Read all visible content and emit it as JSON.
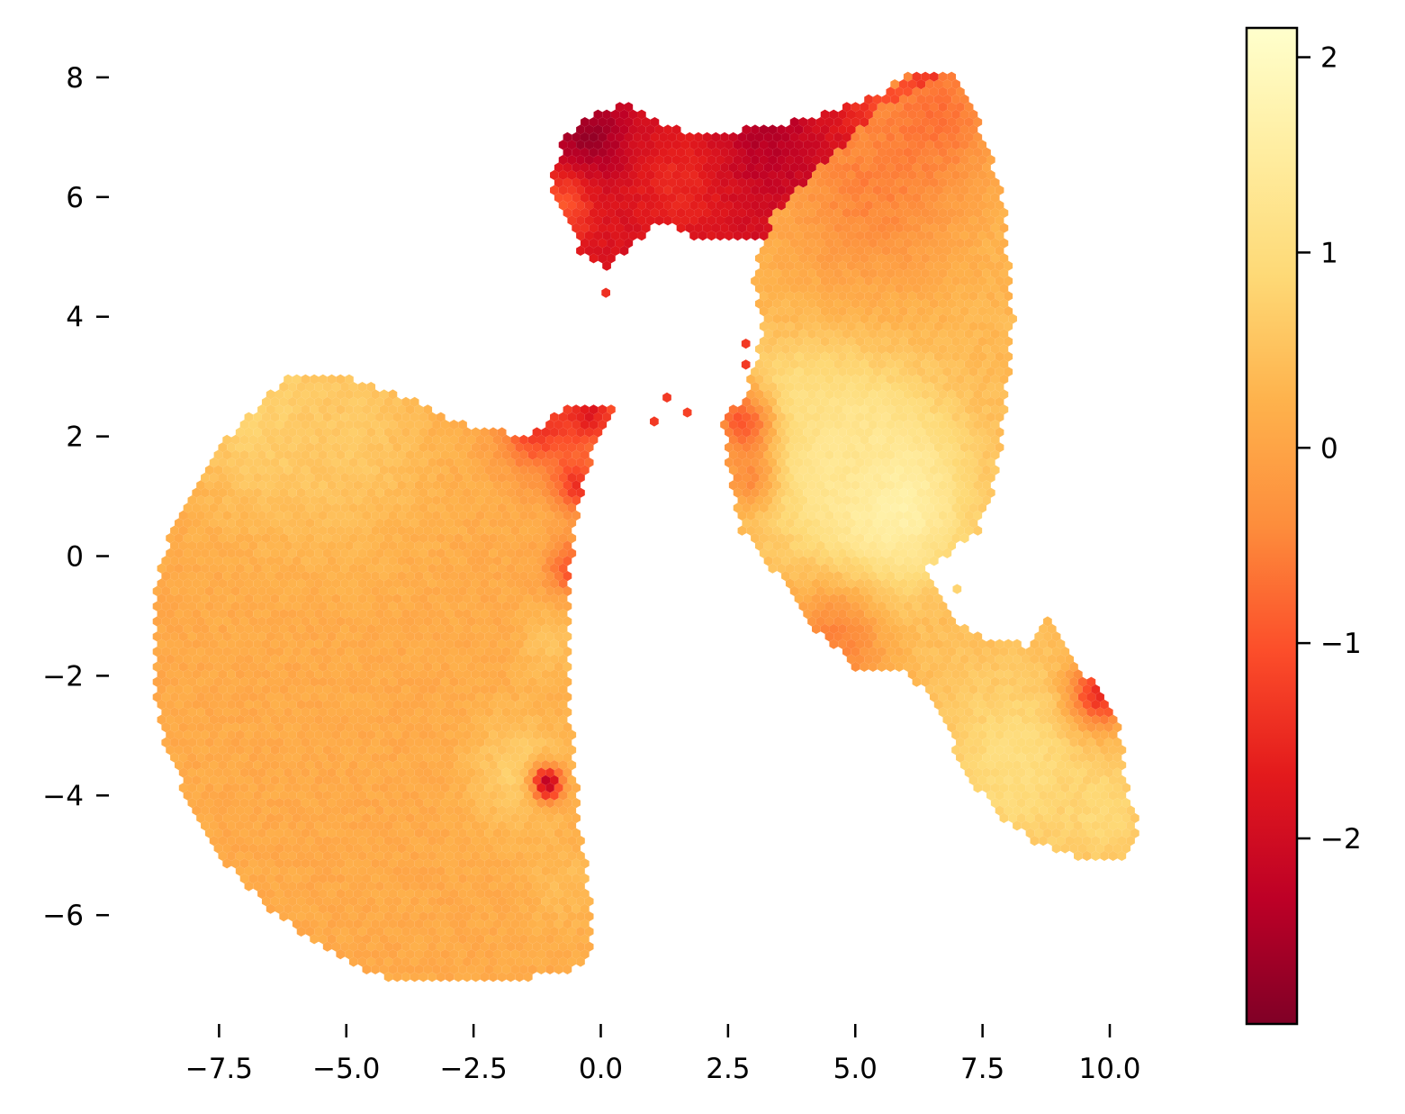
{
  "chart_data": {
    "type": "heatmap",
    "subtype": "hexbin",
    "title": "",
    "xlabel": "",
    "ylabel": "",
    "xlim": [
      -9.0,
      11.0
    ],
    "ylim": [
      -7.8,
      9.0
    ],
    "x_ticks": [
      -7.5,
      -5.0,
      -2.5,
      0.0,
      2.5,
      5.0,
      7.5,
      10.0
    ],
    "x_tick_labels": [
      "−7.5",
      "−5.0",
      "−2.5",
      "0.0",
      "2.5",
      "5.0",
      "7.5",
      "10.0"
    ],
    "y_ticks": [
      8,
      6,
      4,
      2,
      0,
      -2,
      -4,
      -6
    ],
    "y_tick_labels": [
      "8",
      "6",
      "4",
      "2",
      "0",
      "−2",
      "−4",
      "−6"
    ],
    "colorbar": {
      "colormap": "YlOrRd_r",
      "range": [
        -2.95,
        2.15
      ],
      "ticks": [
        2,
        1,
        0,
        -1,
        -2
      ],
      "tick_labels": [
        "2",
        "1",
        "0",
        "−1",
        "−2"
      ]
    },
    "frame": "none",
    "grid": false,
    "regions": [
      {
        "name": "left",
        "outline": [
          [
            -5.7,
            3.05
          ],
          [
            -5.0,
            3.0
          ],
          [
            -4.3,
            2.8
          ],
          [
            -3.5,
            2.55
          ],
          [
            -2.5,
            2.1
          ],
          [
            -1.4,
            2.05
          ],
          [
            -0.6,
            2.5
          ],
          [
            0.3,
            2.55
          ],
          [
            -0.2,
            1.6
          ],
          [
            -0.5,
            0.6
          ],
          [
            -0.65,
            -0.8
          ],
          [
            -0.65,
            -1.6
          ],
          [
            -0.55,
            -3.2
          ],
          [
            -0.4,
            -4.6
          ],
          [
            -0.25,
            -5.4
          ],
          [
            -0.15,
            -6.2
          ],
          [
            -0.15,
            -6.6
          ],
          [
            -0.5,
            -6.9
          ],
          [
            -1.5,
            -7.05
          ],
          [
            -3.0,
            -7.15
          ],
          [
            -3.8,
            -7.15
          ],
          [
            -4.5,
            -6.95
          ],
          [
            -5.6,
            -6.5
          ],
          [
            -6.5,
            -5.9
          ],
          [
            -7.3,
            -5.2
          ],
          [
            -8.0,
            -4.3
          ],
          [
            -8.6,
            -3.1
          ],
          [
            -8.8,
            -2.0
          ],
          [
            -8.8,
            -0.7
          ],
          [
            -8.5,
            0.3
          ],
          [
            -8.1,
            1.0
          ],
          [
            -7.3,
            2.0
          ],
          [
            -6.6,
            2.65
          ],
          [
            -6.2,
            2.95
          ]
        ],
        "base": 0.1,
        "hotspots": [
          {
            "x": -6.5,
            "y": 2.5,
            "r": 1.6,
            "v": 0.9
          },
          {
            "x": -5.0,
            "y": 2.2,
            "r": 2.0,
            "v": 0.6
          },
          {
            "x": -2.5,
            "y": 1.9,
            "r": 1.0,
            "v": 0.2
          },
          {
            "x": -1.2,
            "y": 2.2,
            "r": 0.8,
            "v": -1.3
          },
          {
            "x": -0.2,
            "y": 2.4,
            "r": 0.6,
            "v": -1.7
          },
          {
            "x": -0.45,
            "y": 1.2,
            "r": 0.45,
            "v": -1.4
          },
          {
            "x": -0.6,
            "y": -0.2,
            "r": 0.45,
            "v": -1.0
          },
          {
            "x": -1.6,
            "y": -3.6,
            "r": 1.0,
            "v": 0.7
          },
          {
            "x": -1.0,
            "y": -1.5,
            "r": 0.6,
            "v": 0.5
          },
          {
            "x": -1.05,
            "y": -3.8,
            "r": 0.3,
            "v": -2.3
          },
          {
            "x": -0.7,
            "y": -5.5,
            "r": 0.8,
            "v": 0.4
          }
        ]
      },
      {
        "name": "top",
        "outline": [
          [
            -1.0,
            6.3
          ],
          [
            -0.7,
            7.0
          ],
          [
            -0.1,
            7.4
          ],
          [
            0.5,
            7.55
          ],
          [
            1.3,
            7.2
          ],
          [
            2.0,
            7.0
          ],
          [
            3.0,
            7.15
          ],
          [
            4.0,
            7.3
          ],
          [
            5.5,
            7.7
          ],
          [
            6.3,
            8.1
          ],
          [
            6.8,
            8.1
          ],
          [
            5.5,
            7.5
          ],
          [
            4.2,
            6.4
          ],
          [
            3.4,
            5.7
          ],
          [
            3.2,
            5.25
          ],
          [
            2.0,
            5.25
          ],
          [
            1.2,
            5.6
          ],
          [
            0.6,
            5.2
          ],
          [
            0.1,
            4.75
          ],
          [
            -0.4,
            5.1
          ],
          [
            -0.9,
            5.9
          ]
        ],
        "base": -1.9,
        "hotspots": [
          {
            "x": -0.3,
            "y": 7.0,
            "r": 0.9,
            "v": -2.7
          },
          {
            "x": 3.2,
            "y": 7.0,
            "r": 1.0,
            "v": -2.4
          },
          {
            "x": 1.5,
            "y": 6.2,
            "r": 0.9,
            "v": -1.5
          },
          {
            "x": -0.8,
            "y": 5.8,
            "r": 0.7,
            "v": -1.0
          },
          {
            "x": 5.8,
            "y": 7.7,
            "r": 1.0,
            "v": -1.0
          }
        ]
      },
      {
        "name": "right",
        "outline": [
          [
            3.1,
            5.15
          ],
          [
            3.3,
            5.9
          ],
          [
            4.2,
            6.6
          ],
          [
            5.2,
            7.5
          ],
          [
            6.0,
            8.1
          ],
          [
            6.9,
            8.1
          ],
          [
            7.3,
            7.6
          ],
          [
            7.6,
            6.8
          ],
          [
            7.9,
            6.0
          ],
          [
            8.0,
            5.0
          ],
          [
            8.1,
            4.0
          ],
          [
            8.0,
            3.0
          ],
          [
            7.9,
            2.0
          ],
          [
            7.7,
            1.0
          ],
          [
            7.4,
            0.4
          ],
          [
            6.8,
            0.0
          ],
          [
            6.4,
            -0.2
          ],
          [
            6.6,
            -0.6
          ],
          [
            6.9,
            -1.0
          ],
          [
            7.6,
            -1.4
          ],
          [
            8.5,
            -1.5
          ],
          [
            8.8,
            -1.05
          ],
          [
            9.1,
            -1.5
          ],
          [
            9.4,
            -1.9
          ],
          [
            9.9,
            -2.3
          ],
          [
            10.2,
            -2.9
          ],
          [
            10.3,
            -3.7
          ],
          [
            10.5,
            -4.3
          ],
          [
            10.5,
            -4.7
          ],
          [
            10.2,
            -5.1
          ],
          [
            9.4,
            -5.05
          ],
          [
            8.5,
            -4.8
          ],
          [
            7.6,
            -4.15
          ],
          [
            7.0,
            -3.3
          ],
          [
            6.6,
            -2.5
          ],
          [
            6.0,
            -1.95
          ],
          [
            5.0,
            -1.85
          ],
          [
            4.3,
            -1.3
          ],
          [
            3.7,
            -0.6
          ],
          [
            3.2,
            0.0
          ],
          [
            2.7,
            0.5
          ],
          [
            2.5,
            1.6
          ],
          [
            2.4,
            2.3
          ],
          [
            2.8,
            2.65
          ],
          [
            3.0,
            3.1
          ],
          [
            3.2,
            3.8
          ],
          [
            3.0,
            4.5
          ]
        ],
        "base": 0.35,
        "hotspots": [
          {
            "x": 5.6,
            "y": 0.9,
            "r": 1.5,
            "v": 1.9
          },
          {
            "x": 4.8,
            "y": 1.8,
            "r": 1.6,
            "v": 1.3
          },
          {
            "x": 3.8,
            "y": 2.5,
            "r": 0.9,
            "v": 1.1
          },
          {
            "x": 5.3,
            "y": 6.3,
            "r": 1.9,
            "v": -0.5
          },
          {
            "x": 6.6,
            "y": 7.5,
            "r": 1.2,
            "v": -0.7
          },
          {
            "x": 2.8,
            "y": 2.2,
            "r": 0.6,
            "v": -1.0
          },
          {
            "x": 2.9,
            "y": 1.3,
            "r": 0.5,
            "v": -0.4
          },
          {
            "x": 4.6,
            "y": -1.5,
            "r": 1.1,
            "v": -0.5
          },
          {
            "x": 7.0,
            "y": -1.2,
            "r": 0.8,
            "v": 0.4
          },
          {
            "x": 8.2,
            "y": -3.5,
            "r": 1.6,
            "v": 1.0
          },
          {
            "x": 9.8,
            "y": -2.3,
            "r": 0.6,
            "v": -1.4
          },
          {
            "x": 9.9,
            "y": -4.3,
            "r": 0.8,
            "v": 0.9
          }
        ]
      }
    ],
    "isolated_points": [
      {
        "x": 0.1,
        "y": 4.4,
        "v": -1.4
      },
      {
        "x": 1.3,
        "y": 2.65,
        "v": -1.3
      },
      {
        "x": 1.05,
        "y": 2.25,
        "v": -1.3
      },
      {
        "x": 1.7,
        "y": 2.4,
        "v": -1.2
      },
      {
        "x": 2.85,
        "y": 3.55,
        "v": -1.3
      },
      {
        "x": 2.85,
        "y": 3.2,
        "v": -1.3
      },
      {
        "x": 7.0,
        "y": -0.55,
        "v": 0.8
      }
    ]
  }
}
